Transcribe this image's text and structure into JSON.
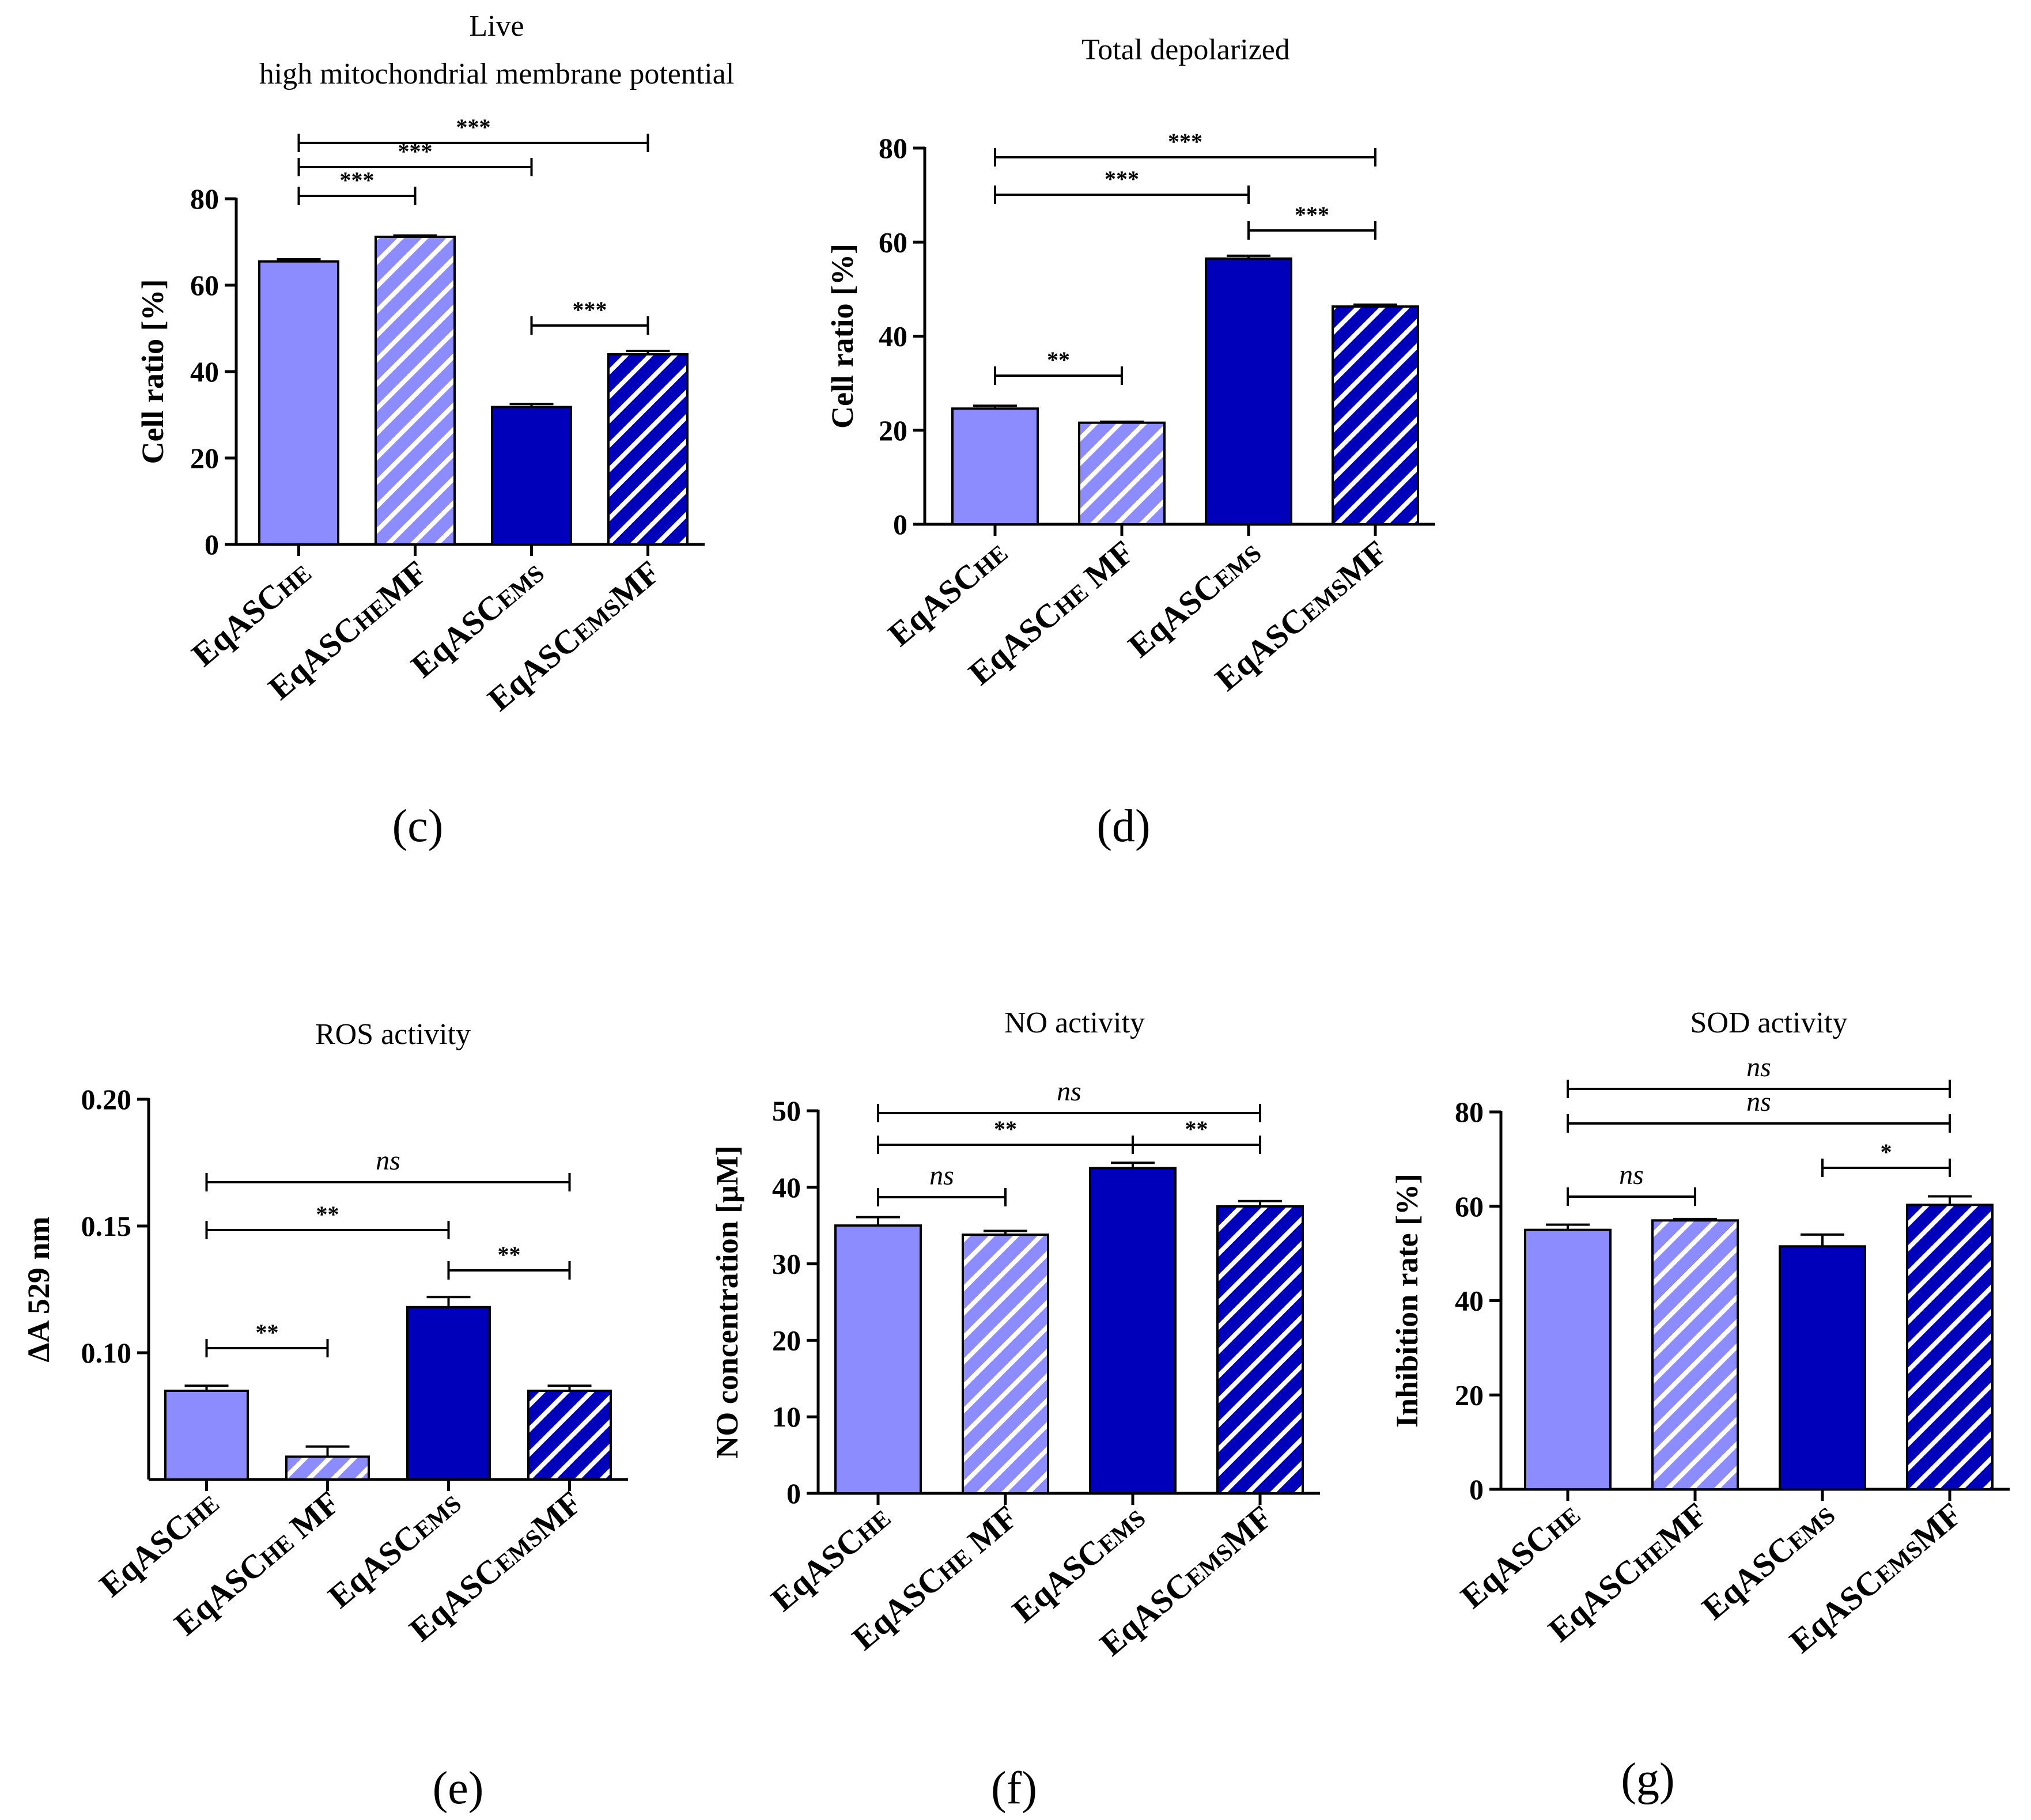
{
  "colors": {
    "light": "#8c8cff",
    "dark": "#0000bb",
    "stroke": "#000000",
    "hatch": "#ffffff"
  },
  "category_parts": [
    [
      {
        "t": "EqASC"
      },
      {
        "t": "HE",
        "sub": true
      }
    ],
    [
      {
        "t": "EqASC"
      },
      {
        "t": "HE",
        "sub": true
      },
      {
        "t": "MF"
      }
    ],
    [
      {
        "t": "EqASC"
      },
      {
        "t": "EMS",
        "sub": true
      }
    ],
    [
      {
        "t": "EqASC"
      },
      {
        "t": "EMS",
        "sub": true
      },
      {
        "t": "MF"
      }
    ]
  ],
  "chart_data": [
    {
      "panel": "(c)",
      "type": "bar",
      "title": [
        "Live",
        "high mitochondrial membrane potential"
      ],
      "ylabel": "Cell ratio [%]",
      "categories": [
        "EqASCHE",
        "EqASCHEMF",
        "EqASCEMS",
        "EqASCEMSMF"
      ],
      "values": [
        65.5,
        71.2,
        31.8,
        44.0
      ],
      "errors": [
        0.5,
        0.3,
        0.7,
        0.8
      ],
      "hatched": [
        false,
        true,
        false,
        true
      ],
      "colors": [
        "light",
        "light",
        "dark",
        "dark"
      ],
      "ylim": [
        0,
        80
      ],
      "yticks": [
        "0",
        "20",
        "40",
        "60",
        "80"
      ],
      "ytick_values": [
        0,
        20,
        40,
        60,
        80
      ],
      "significance": [
        {
          "from": 0,
          "to": 1,
          "label": "***"
        },
        {
          "from": 0,
          "to": 2,
          "label": "***"
        },
        {
          "from": 0,
          "to": 3,
          "label": "***"
        },
        {
          "from": 2,
          "to": 3,
          "label": "***"
        }
      ]
    },
    {
      "panel": "(d)",
      "type": "bar",
      "title": [
        "Total depolarized"
      ],
      "ylabel": "Cell ratio [%]",
      "categories": [
        "EqASCHE",
        "EqASCHE MF",
        "EqASCEMS",
        "EqASCEMSMF"
      ],
      "values": [
        24.6,
        21.6,
        56.5,
        46.3
      ],
      "errors": [
        0.6,
        0.2,
        0.6,
        0.4
      ],
      "hatched": [
        false,
        true,
        false,
        true
      ],
      "colors": [
        "light",
        "light",
        "dark",
        "dark"
      ],
      "ylim": [
        0,
        80
      ],
      "yticks": [
        "0",
        "20",
        "40",
        "60",
        "80"
      ],
      "ytick_values": [
        0,
        20,
        40,
        60,
        80
      ],
      "significance": [
        {
          "from": 0,
          "to": 1,
          "label": "**"
        },
        {
          "from": 0,
          "to": 2,
          "label": "***"
        },
        {
          "from": 0,
          "to": 3,
          "label": "***"
        },
        {
          "from": 2,
          "to": 3,
          "label": "***"
        }
      ]
    },
    {
      "panel": "(e)",
      "type": "bar",
      "title": [
        "ROS activity"
      ],
      "ylabel": "ΔA 529 nm",
      "categories": [
        "EqASCHE",
        "EqASCHE MF",
        "EqASCEMS",
        "EqASCEMSMF"
      ],
      "values": [
        0.085,
        0.059,
        0.118,
        0.085
      ],
      "errors": [
        0.002,
        0.004,
        0.004,
        0.002
      ],
      "hatched": [
        false,
        true,
        false,
        true
      ],
      "colors": [
        "light",
        "light",
        "dark",
        "dark"
      ],
      "ylim": [
        0.05,
        0.2
      ],
      "yticks": [
        "0.10",
        "0.15",
        "0.20"
      ],
      "ytick_values": [
        0.1,
        0.15,
        0.2
      ],
      "significance": [
        {
          "from": 0,
          "to": 1,
          "label": "**"
        },
        {
          "from": 0,
          "to": 2,
          "label": "**"
        },
        {
          "from": 0,
          "to": 3,
          "label": "ns"
        },
        {
          "from": 2,
          "to": 3,
          "label": "**"
        }
      ]
    },
    {
      "panel": "(f)",
      "type": "bar",
      "title": [
        "NO activity"
      ],
      "ylabel": "NO concentration [μM]",
      "categories": [
        "EqASCHE",
        "EqASCHE MF",
        "EqASCEMS",
        "EqASCEMSMF"
      ],
      "values": [
        35.0,
        33.8,
        42.5,
        37.5
      ],
      "errors": [
        1.1,
        0.5,
        0.7,
        0.7
      ],
      "hatched": [
        false,
        true,
        false,
        true
      ],
      "colors": [
        "light",
        "light",
        "dark",
        "dark"
      ],
      "ylim": [
        0,
        50
      ],
      "yticks": [
        "0",
        "10",
        "20",
        "30",
        "40",
        "50"
      ],
      "ytick_values": [
        0,
        10,
        20,
        30,
        40,
        50
      ],
      "significance": [
        {
          "from": 0,
          "to": 1,
          "label": "ns"
        },
        {
          "from": 0,
          "to": 2,
          "label": "**"
        },
        {
          "from": 0,
          "to": 3,
          "label": "ns"
        },
        {
          "from": 2,
          "to": 3,
          "label": "**"
        }
      ]
    },
    {
      "panel": "(g)",
      "type": "bar",
      "title": [
        "SOD activity"
      ],
      "ylabel": "Inhibition rate [%]",
      "categories": [
        "EqASCHE",
        "EqASCHEMF",
        "EqASCEMS",
        "EqASCEMSMF"
      ],
      "values": [
        55.0,
        57.0,
        51.5,
        60.3
      ],
      "errors": [
        1.1,
        0.3,
        2.5,
        1.8
      ],
      "hatched": [
        false,
        true,
        false,
        true
      ],
      "colors": [
        "light",
        "light",
        "dark",
        "dark"
      ],
      "ylim": [
        0,
        80
      ],
      "yticks": [
        "0",
        "20",
        "40",
        "60",
        "80"
      ],
      "ytick_values": [
        0,
        20,
        40,
        60,
        80
      ],
      "significance": [
        {
          "from": 0,
          "to": 1,
          "label": "ns"
        },
        {
          "from": 2,
          "to": 3,
          "label": "*"
        },
        {
          "from": 0,
          "to": 3,
          "label": "ns"
        },
        {
          "from": 0,
          "to": 3,
          "label": "ns"
        }
      ]
    }
  ]
}
